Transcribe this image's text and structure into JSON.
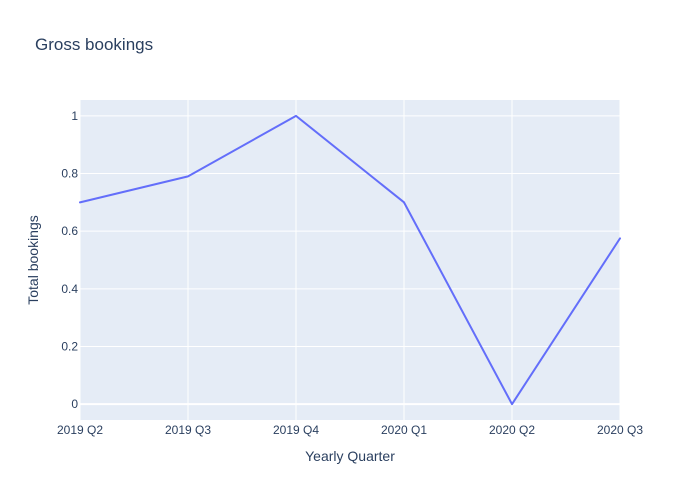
{
  "chart_data": {
    "type": "line",
    "title": "Gross bookings",
    "xlabel": "Yearly Quarter",
    "ylabel": "Total bookings",
    "categories": [
      "2019 Q2",
      "2019 Q3",
      "2019 Q4",
      "2020 Q1",
      "2020 Q2",
      "2020 Q3"
    ],
    "series": [
      {
        "values": [
          0.7,
          0.79,
          1.0,
          0.7,
          0.0,
          0.575
        ],
        "color": "#636efa"
      }
    ],
    "ylim": [
      -0.055,
      1.055
    ],
    "yticks": [
      0,
      0.2,
      0.4,
      0.6,
      0.8,
      1
    ],
    "ytick_labels": [
      "0",
      "0.2",
      "0.4",
      "0.6",
      "0.8",
      "1"
    ],
    "grid": true,
    "plot_background": "#e5ecf6",
    "grid_color": "#ffffff",
    "text_color": "#2a3f5f"
  }
}
